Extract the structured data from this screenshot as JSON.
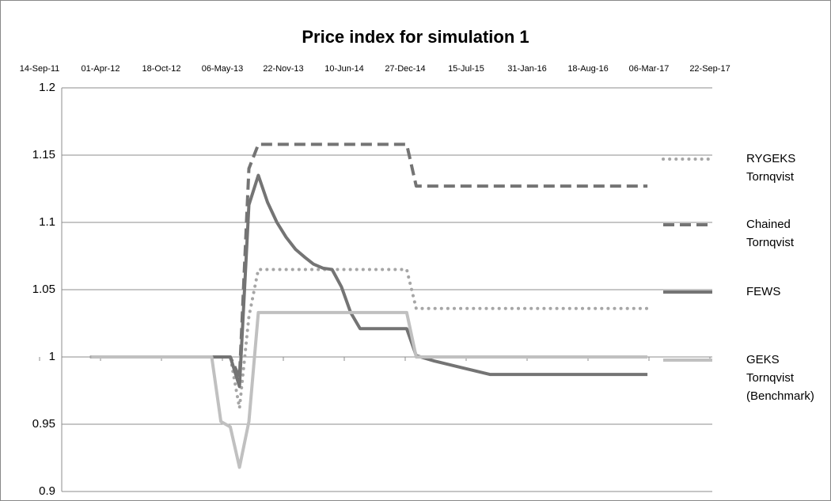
{
  "chart_data": {
    "type": "line",
    "title": "Price index for simulation 1",
    "x": [
      "01-Mar-12",
      "01-Apr-13",
      "01-May-13",
      "01-Jun-13",
      "01-Jul-13",
      "01-Aug-13",
      "01-Sep-13",
      "01-Oct-13",
      "01-Nov-13",
      "01-Dec-13",
      "01-Jan-14",
      "01-Feb-14",
      "01-Mar-14",
      "01-Apr-14",
      "01-May-14",
      "01-Jun-14",
      "01-Jul-14",
      "01-Aug-14",
      "01-Jan-15",
      "01-Feb-15",
      "01-Apr-15",
      "01-Jul-15",
      "01-Oct-15",
      "01-Mar-17"
    ],
    "series": [
      {
        "name": "RYGEKS Tornqvist",
        "color": "#a6a6a6",
        "dash": "dotted",
        "values": [
          1,
          1,
          1,
          1,
          0.962,
          1.03,
          1.065,
          1.065,
          1.065,
          1.065,
          1.065,
          1.065,
          1.065,
          1.065,
          1.065,
          1.065,
          1.065,
          1.065,
          1.065,
          1.036,
          1.036,
          1.036,
          1.036,
          1.036
        ]
      },
      {
        "name": "Chained Tornqvist",
        "color": "#747474",
        "dash": "dashed",
        "values": [
          1,
          1,
          1,
          1,
          0.985,
          1.14,
          1.158,
          1.158,
          1.158,
          1.158,
          1.158,
          1.158,
          1.158,
          1.158,
          1.158,
          1.158,
          1.158,
          1.158,
          1.158,
          1.127,
          1.127,
          1.127,
          1.127,
          1.127
        ]
      },
      {
        "name": "FEWS",
        "color": "#747474",
        "dash": "solid",
        "values": [
          1,
          1,
          1,
          1,
          0.978,
          1.113,
          1.135,
          1.115,
          1.1,
          1.089,
          1.08,
          1.074,
          1.069,
          1.066,
          1.065,
          1.052,
          1.033,
          1.021,
          1.021,
          1.001,
          0.997,
          0.992,
          0.987,
          0.987
        ]
      },
      {
        "name": "GEKS Tornqvist (Benchmark)",
        "color": "#c0c0c0",
        "dash": "solid",
        "values": [
          1,
          1,
          0.952,
          0.948,
          0.918,
          0.952,
          1.033,
          1.033,
          1.033,
          1.033,
          1.033,
          1.033,
          1.033,
          1.033,
          1.033,
          1.033,
          1.033,
          1.033,
          1.033,
          1,
          1,
          1,
          1,
          1
        ]
      }
    ],
    "xlim": [
      "14-Sep-11",
      "22-Sep-17"
    ],
    "xticks": [
      "14-Sep-11",
      "01-Apr-12",
      "18-Oct-12",
      "06-May-13",
      "22-Nov-13",
      "10-Jun-14",
      "27-Dec-14",
      "15-Jul-15",
      "31-Jan-16",
      "18-Aug-16",
      "06-Mar-17",
      "22-Sep-17"
    ],
    "ylim": [
      0.9,
      1.2
    ],
    "yticks": [
      0.9,
      0.95,
      1,
      1.05,
      1.1,
      1.15,
      1.2
    ],
    "grid": true,
    "legend": "right"
  }
}
